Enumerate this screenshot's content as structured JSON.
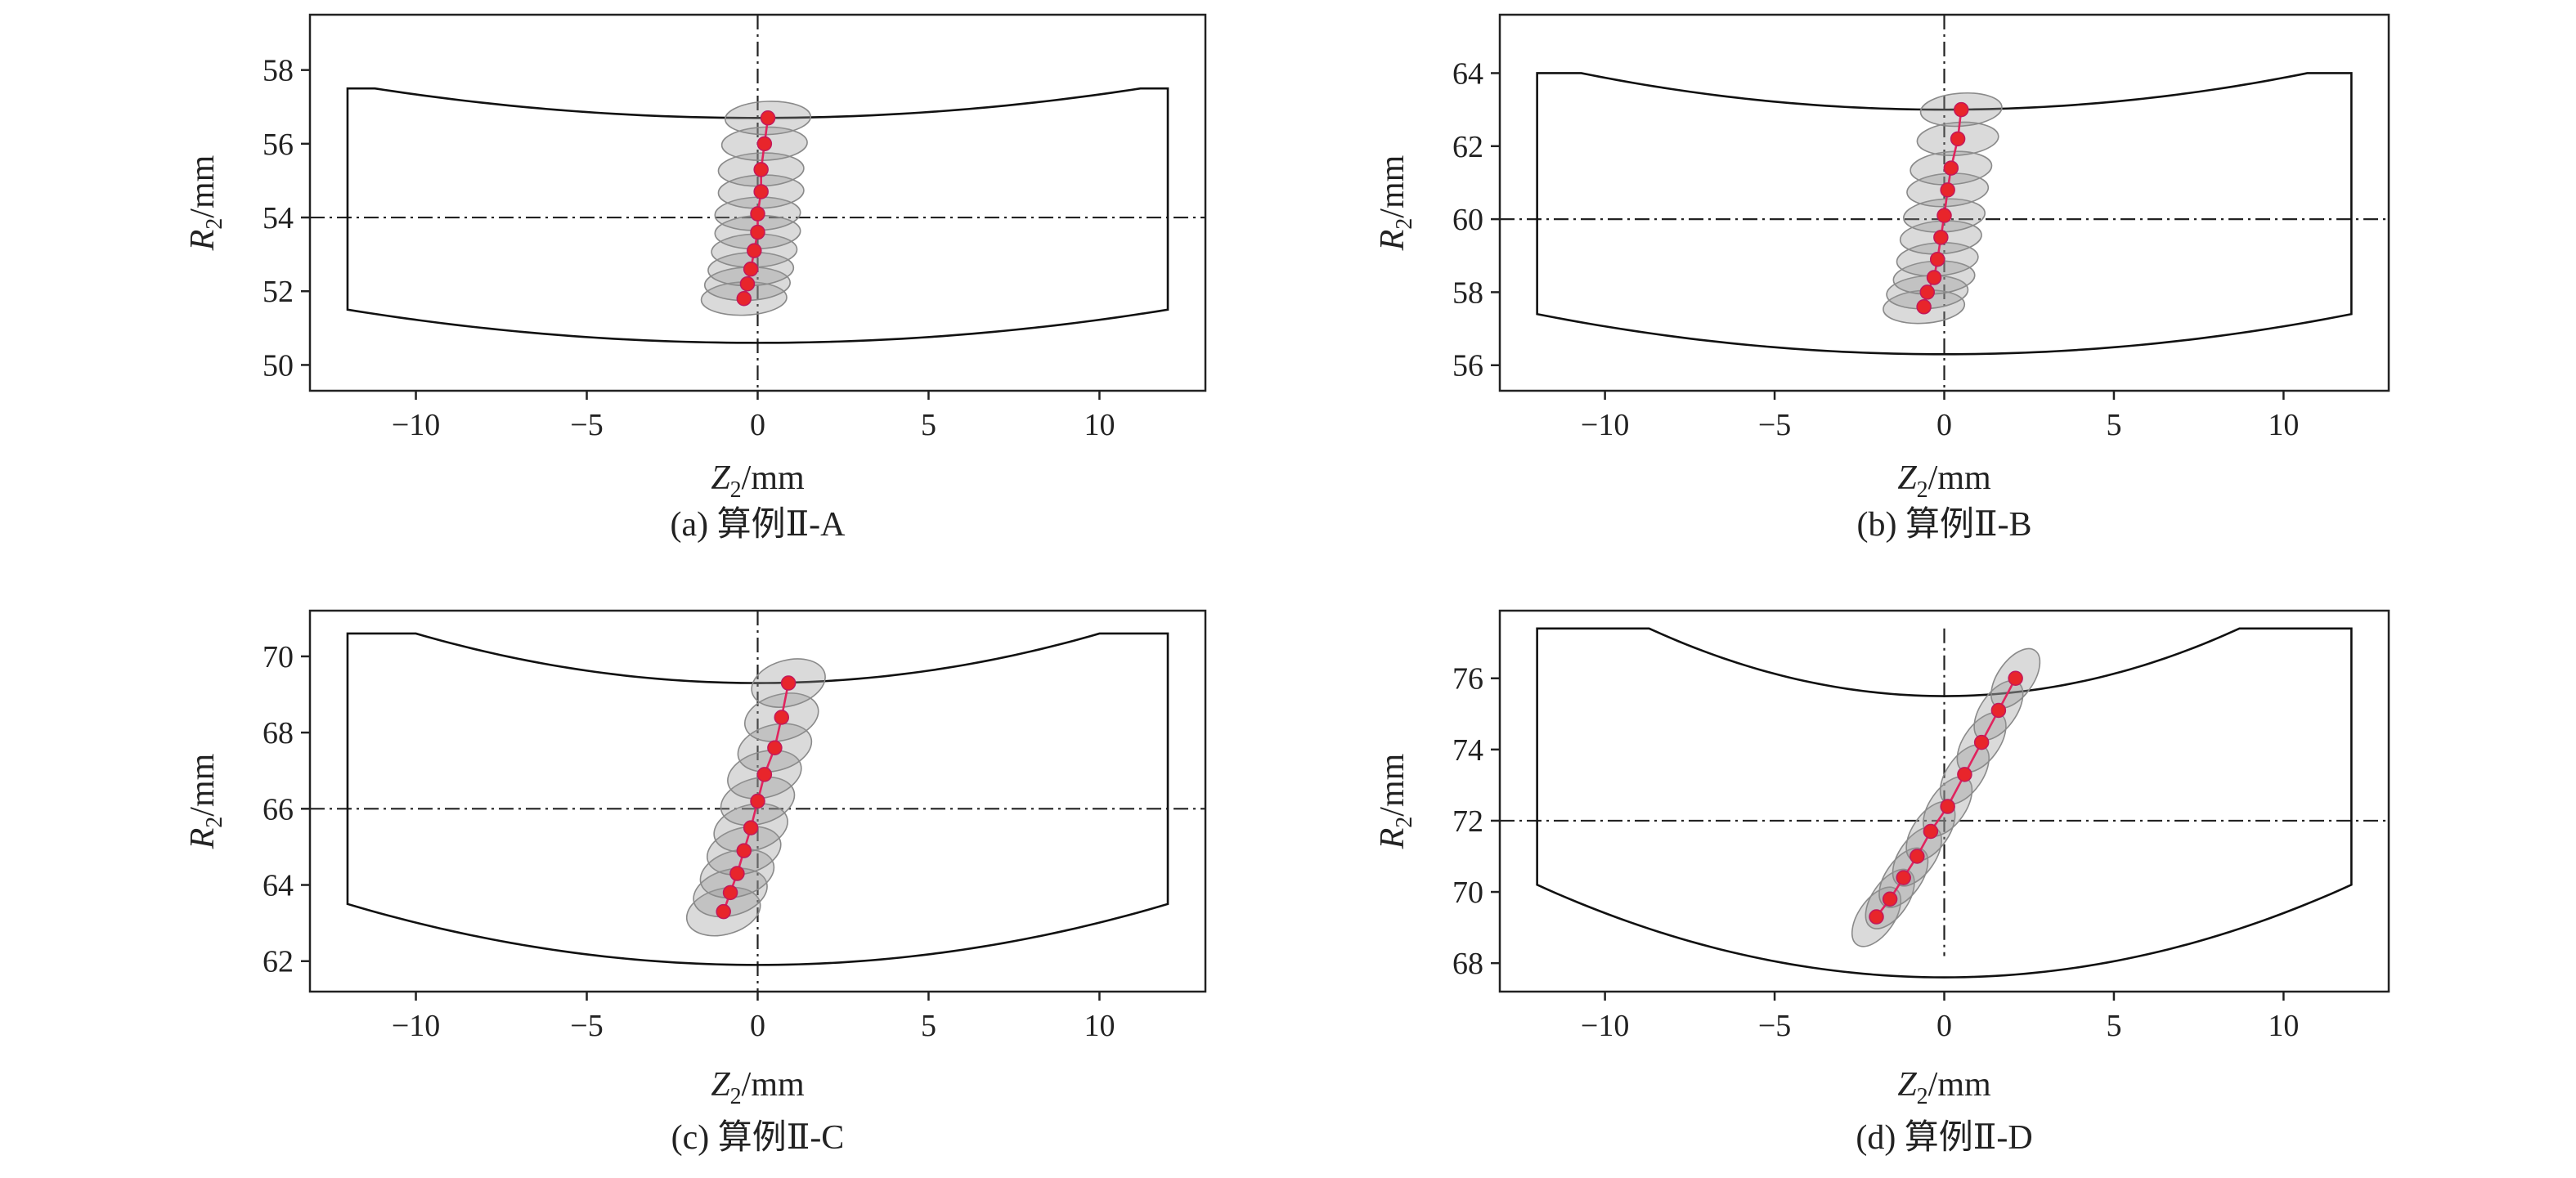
{
  "chart_data": [
    {
      "type": "scatter",
      "caption": "(a) 算例Ⅱ-A",
      "xlabel_main": "Z",
      "xlabel_sub": "2",
      "xlabel_unit": "/mm",
      "ylabel_main": "R",
      "ylabel_sub": "2",
      "ylabel_unit": "/mm",
      "xlim": [
        -13.1,
        13.1
      ],
      "ylim": [
        49.3,
        59.5
      ],
      "xticks": [
        -10,
        -5,
        0,
        5,
        10
      ],
      "xtick_labels": [
        "−10",
        "−5",
        "0",
        "5",
        "10"
      ],
      "yticks": [
        50,
        52,
        54,
        56,
        58
      ],
      "ytick_labels": [
        "50",
        "52",
        "54",
        "56",
        "58"
      ],
      "center_line_x": 0,
      "center_line_y": 54.0,
      "boundary": {
        "outer_r": 57.5,
        "inner_r": 51.5,
        "top_sag": 0.8,
        "bottom_sag": 0.9,
        "top_flat_to": 11.2,
        "half_width": 12.0
      },
      "points": [
        {
          "z": -0.4,
          "r": 51.8
        },
        {
          "z": -0.3,
          "r": 52.2
        },
        {
          "z": -0.2,
          "r": 52.6
        },
        {
          "z": -0.1,
          "r": 53.1
        },
        {
          "z": 0.0,
          "r": 53.6
        },
        {
          "z": 0.0,
          "r": 54.1
        },
        {
          "z": 0.1,
          "r": 54.7
        },
        {
          "z": 0.1,
          "r": 55.3
        },
        {
          "z": 0.2,
          "r": 56.0
        },
        {
          "z": 0.3,
          "r": 56.7
        }
      ],
      "ellipse_semi_axes": [
        1.25,
        0.45
      ],
      "ellipse_angle_deg": 2
    },
    {
      "type": "scatter",
      "caption": "(b) 算例Ⅱ-B",
      "xlabel_main": "Z",
      "xlabel_sub": "2",
      "xlabel_unit": "/mm",
      "ylabel_main": "R",
      "ylabel_sub": "2",
      "ylabel_unit": "/mm",
      "xlim": [
        -13.1,
        13.1
      ],
      "ylim": [
        55.3,
        65.6
      ],
      "xticks": [
        -10,
        -5,
        0,
        5,
        10
      ],
      "xtick_labels": [
        "−10",
        "−5",
        "0",
        "5",
        "10"
      ],
      "yticks": [
        56,
        58,
        60,
        62,
        64
      ],
      "ytick_labels": [
        "56",
        "58",
        "60",
        "62",
        "64"
      ],
      "center_line_x": 0,
      "center_line_y": 60.0,
      "boundary": {
        "outer_r": 64.0,
        "inner_r": 57.4,
        "top_sag": 1.0,
        "bottom_sag": 1.1,
        "top_flat_to": 10.7,
        "half_width": 12.0
      },
      "points": [
        {
          "z": -0.6,
          "r": 57.6
        },
        {
          "z": -0.5,
          "r": 58.0
        },
        {
          "z": -0.3,
          "r": 58.4
        },
        {
          "z": -0.2,
          "r": 58.9
        },
        {
          "z": -0.1,
          "r": 59.5
        },
        {
          "z": 0.0,
          "r": 60.1
        },
        {
          "z": 0.1,
          "r": 60.8
        },
        {
          "z": 0.2,
          "r": 61.4
        },
        {
          "z": 0.4,
          "r": 62.2
        },
        {
          "z": 0.5,
          "r": 63.0
        }
      ],
      "ellipse_semi_axes": [
        1.2,
        0.45
      ],
      "ellipse_angle_deg": 4
    },
    {
      "type": "scatter",
      "caption": "(c) 算例Ⅱ-C",
      "xlabel_main": "Z",
      "xlabel_sub": "2",
      "xlabel_unit": "/mm",
      "ylabel_main": "R",
      "ylabel_sub": "2",
      "ylabel_unit": "/mm",
      "xlim": [
        -13.1,
        13.1
      ],
      "ylim": [
        61.2,
        71.2
      ],
      "xticks": [
        -10,
        -5,
        0,
        5,
        10
      ],
      "xtick_labels": [
        "−10",
        "−5",
        "0",
        "5",
        "10"
      ],
      "yticks": [
        62,
        64,
        66,
        68,
        70
      ],
      "ytick_labels": [
        "62",
        "64",
        "66",
        "68",
        "70"
      ],
      "center_line_x": 0,
      "center_line_y": 66.0,
      "boundary": {
        "outer_r": 70.6,
        "inner_r": 63.5,
        "top_sag": 1.3,
        "bottom_sag": 1.6,
        "top_flat_to": 10.0,
        "half_width": 12.0
      },
      "points": [
        {
          "z": -1.0,
          "r": 63.3
        },
        {
          "z": -0.8,
          "r": 63.8
        },
        {
          "z": -0.6,
          "r": 64.3
        },
        {
          "z": -0.4,
          "r": 64.9
        },
        {
          "z": -0.2,
          "r": 65.5
        },
        {
          "z": 0.0,
          "r": 66.2
        },
        {
          "z": 0.2,
          "r": 66.9
        },
        {
          "z": 0.5,
          "r": 67.6
        },
        {
          "z": 0.7,
          "r": 68.4
        },
        {
          "z": 0.9,
          "r": 69.3
        }
      ],
      "ellipse_semi_axes": [
        1.1,
        0.6
      ],
      "ellipse_angle_deg": 15
    },
    {
      "type": "scatter",
      "caption": "(d) 算例Ⅱ-D",
      "xlabel_main": "Z",
      "xlabel_sub": "2",
      "xlabel_unit": "/mm",
      "ylabel_main": "R",
      "ylabel_sub": "2",
      "ylabel_unit": "/mm",
      "xlim": [
        -13.1,
        13.1
      ],
      "ylim": [
        67.2,
        77.9
      ],
      "xticks": [
        -10,
        -5,
        0,
        5,
        10
      ],
      "xtick_labels": [
        "−10",
        "−5",
        "0",
        "5",
        "10"
      ],
      "yticks": [
        68,
        70,
        72,
        74,
        76
      ],
      "ytick_labels": [
        "68",
        "70",
        "72",
        "74",
        "76"
      ],
      "center_line_x": 0,
      "center_line_y": 72.0,
      "center_line_y_span": [
        68.2,
        77.4
      ],
      "boundary": {
        "outer_r": 77.4,
        "inner_r": 70.2,
        "top_sag": 1.9,
        "bottom_sag": 2.6,
        "top_flat_to": 8.7,
        "half_width": 12.0
      },
      "points": [
        {
          "z": -2.0,
          "r": 69.3
        },
        {
          "z": -1.6,
          "r": 69.8
        },
        {
          "z": -1.2,
          "r": 70.4
        },
        {
          "z": -0.8,
          "r": 71.0
        },
        {
          "z": -0.4,
          "r": 71.7
        },
        {
          "z": 0.1,
          "r": 72.4
        },
        {
          "z": 0.6,
          "r": 73.3
        },
        {
          "z": 1.1,
          "r": 74.2
        },
        {
          "z": 1.6,
          "r": 75.1
        },
        {
          "z": 2.1,
          "r": 76.0
        }
      ],
      "ellipse_semi_axes": [
        1.0,
        0.5
      ],
      "ellipse_angle_deg": 55
    }
  ]
}
